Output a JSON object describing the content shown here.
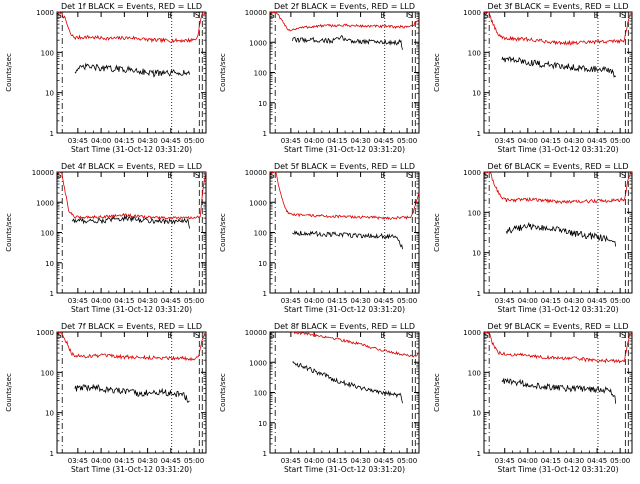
{
  "colors": {
    "events": "#000000",
    "lld": "#dd0000",
    "axis": "#000000",
    "background": "#ffffff"
  },
  "chart_data": [
    {
      "type": "line",
      "title": "Det 1f BLACK = Events, RED = LLD",
      "xlabel": "Start Time (31-Oct-12 03:31:20)",
      "ylabel": "Counts/sec",
      "y_scale": "log",
      "ylim": [
        1,
        1000
      ],
      "y_ticks": [
        "1",
        "10",
        "100",
        "1000"
      ],
      "x_ticks": [
        "03:45",
        "04:00",
        "04:15",
        "04:30",
        "04:45",
        "05:00"
      ],
      "markers": [
        {
          "label": "S"
        },
        {
          "label": "E"
        },
        {
          "label": "S"
        }
      ],
      "series": [
        {
          "label": "LLD",
          "color": "#dd0000",
          "points": [
            [
              0,
              1000
            ],
            [
              0.03,
              1000
            ],
            [
              0.06,
              600
            ],
            [
              0.09,
              280
            ],
            [
              0.12,
              230
            ],
            [
              0.2,
              240
            ],
            [
              0.35,
              220
            ],
            [
              0.5,
              230
            ],
            [
              0.65,
              200
            ],
            [
              0.8,
              195
            ],
            [
              0.9,
              200
            ],
            [
              0.94,
              220
            ],
            [
              0.97,
              800
            ],
            [
              1,
              1000
            ]
          ]
        },
        {
          "label": "Events",
          "color": "#000000",
          "points": [
            [
              0.12,
              35
            ],
            [
              0.2,
              45
            ],
            [
              0.3,
              40
            ],
            [
              0.45,
              38
            ],
            [
              0.55,
              35
            ],
            [
              0.65,
              30
            ],
            [
              0.75,
              30
            ],
            [
              0.85,
              32
            ],
            [
              0.89,
              28
            ]
          ]
        }
      ]
    },
    {
      "type": "line",
      "title": "Det 2f BLACK = Events, RED = LLD",
      "xlabel": "Start Time (31-Oct-12 03:31:20)",
      "ylabel": "Counts/sec",
      "y_scale": "log",
      "ylim": [
        1,
        10000
      ],
      "y_ticks": [
        "1",
        "10",
        "100",
        "1000",
        "10000"
      ],
      "x_ticks": [
        "03:45",
        "04:00",
        "04:15",
        "04:30",
        "04:45",
        "05:00"
      ],
      "markers": [
        {
          "label": "S"
        },
        {
          "label": "E"
        },
        {
          "label": "S"
        }
      ],
      "series": [
        {
          "label": "LLD",
          "color": "#dd0000",
          "points": [
            [
              0,
              10000
            ],
            [
              0.04,
              10000
            ],
            [
              0.07,
              6000
            ],
            [
              0.1,
              3500
            ],
            [
              0.13,
              2500
            ],
            [
              0.2,
              3000
            ],
            [
              0.35,
              3500
            ],
            [
              0.5,
              3600
            ],
            [
              0.65,
              3400
            ],
            [
              0.8,
              3300
            ],
            [
              0.9,
              3200
            ],
            [
              0.96,
              3600
            ],
            [
              1,
              6000
            ]
          ]
        },
        {
          "label": "Events",
          "color": "#000000",
          "points": [
            [
              0.15,
              1200
            ],
            [
              0.3,
              1200
            ],
            [
              0.42,
              1100
            ],
            [
              0.48,
              1400
            ],
            [
              0.55,
              1100
            ],
            [
              0.7,
              1050
            ],
            [
              0.8,
              1000
            ],
            [
              0.88,
              980
            ],
            [
              0.89,
              500
            ]
          ]
        }
      ]
    },
    {
      "type": "line",
      "title": "Det 3f BLACK = Events, RED = LLD",
      "xlabel": "Start Time (31-Oct-12 03:31:20)",
      "ylabel": "Counts/sec",
      "y_scale": "log",
      "ylim": [
        1,
        1000
      ],
      "y_ticks": [
        "1",
        "10",
        "100",
        "1000"
      ],
      "x_ticks": [
        "03:45",
        "04:00",
        "04:15",
        "04:30",
        "04:45",
        "05:00"
      ],
      "markers": [
        {
          "label": "S"
        },
        {
          "label": "E"
        },
        {
          "label": "S"
        }
      ],
      "series": [
        {
          "label": "LLD",
          "color": "#dd0000",
          "points": [
            [
              0,
              1000
            ],
            [
              0.03,
              1000
            ],
            [
              0.06,
              500
            ],
            [
              0.1,
              260
            ],
            [
              0.15,
              220
            ],
            [
              0.3,
              210
            ],
            [
              0.45,
              180
            ],
            [
              0.6,
              170
            ],
            [
              0.75,
              180
            ],
            [
              0.9,
              190
            ],
            [
              0.95,
              200
            ],
            [
              0.98,
              800
            ],
            [
              1,
              1000
            ]
          ]
        },
        {
          "label": "Events",
          "color": "#000000",
          "points": [
            [
              0.12,
              70
            ],
            [
              0.25,
              60
            ],
            [
              0.4,
              50
            ],
            [
              0.55,
              45
            ],
            [
              0.7,
              40
            ],
            [
              0.85,
              35
            ],
            [
              0.89,
              25
            ]
          ]
        }
      ]
    },
    {
      "type": "line",
      "title": "Det 4f BLACK = Events, RED = LLD",
      "xlabel": "Start Time (31-Oct-12 03:31:20)",
      "ylabel": "Counts/sec",
      "y_scale": "log",
      "ylim": [
        1,
        10000
      ],
      "y_ticks": [
        "1",
        "10",
        "100",
        "1000",
        "10000"
      ],
      "x_ticks": [
        "03:45",
        "04:00",
        "04:15",
        "04:30",
        "04:45",
        "05:00"
      ],
      "markers": [
        {
          "label": "S"
        },
        {
          "label": "E"
        },
        {
          "label": "S"
        }
      ],
      "series": [
        {
          "label": "LLD",
          "color": "#dd0000",
          "points": [
            [
              0,
              10000
            ],
            [
              0.03,
              10000
            ],
            [
              0.05,
              3000
            ],
            [
              0.08,
              500
            ],
            [
              0.12,
              320
            ],
            [
              0.3,
              330
            ],
            [
              0.45,
              380
            ],
            [
              0.6,
              320
            ],
            [
              0.75,
              300
            ],
            [
              0.9,
              300
            ],
            [
              0.96,
              320
            ],
            [
              0.98,
              3000
            ],
            [
              1,
              10000
            ]
          ]
        },
        {
          "label": "Events",
          "color": "#000000",
          "points": [
            [
              0.1,
              250
            ],
            [
              0.3,
              240
            ],
            [
              0.45,
              300
            ],
            [
              0.6,
              250
            ],
            [
              0.75,
              230
            ],
            [
              0.88,
              240
            ],
            [
              0.89,
              120
            ]
          ]
        }
      ]
    },
    {
      "type": "line",
      "title": "Det 5f BLACK = Events, RED = LLD",
      "xlabel": "Start Time (31-Oct-12 03:31:20)",
      "ylabel": "Counts/sec",
      "y_scale": "log",
      "ylim": [
        1,
        10000
      ],
      "y_ticks": [
        "1",
        "10",
        "100",
        "1000",
        "10000"
      ],
      "x_ticks": [
        "03:45",
        "04:00",
        "04:15",
        "04:30",
        "04:45",
        "05:00"
      ],
      "markers": [
        {
          "label": "S"
        },
        {
          "label": "E"
        },
        {
          "label": "S"
        }
      ],
      "series": [
        {
          "label": "LLD",
          "color": "#dd0000",
          "points": [
            [
              0,
              10000
            ],
            [
              0.04,
              10000
            ],
            [
              0.07,
              2000
            ],
            [
              0.11,
              500
            ],
            [
              0.15,
              380
            ],
            [
              0.3,
              360
            ],
            [
              0.5,
              330
            ],
            [
              0.65,
              320
            ],
            [
              0.8,
              300
            ],
            [
              0.9,
              310
            ],
            [
              0.95,
              330
            ],
            [
              1,
              2000
            ]
          ]
        },
        {
          "label": "Events",
          "color": "#000000",
          "points": [
            [
              0.15,
              100
            ],
            [
              0.3,
              90
            ],
            [
              0.45,
              85
            ],
            [
              0.6,
              80
            ],
            [
              0.75,
              75
            ],
            [
              0.85,
              70
            ],
            [
              0.89,
              30
            ]
          ]
        }
      ]
    },
    {
      "type": "line",
      "title": "Det 6f BLACK = Events, RED = LLD",
      "xlabel": "Start Time (31-Oct-12 03:31:20)",
      "ylabel": "Counts/sec",
      "y_scale": "log",
      "ylim": [
        1,
        1000
      ],
      "y_ticks": [
        "1",
        "10",
        "100",
        "1000"
      ],
      "x_ticks": [
        "03:45",
        "04:00",
        "04:15",
        "04:30",
        "04:45",
        "05:00"
      ],
      "markers": [
        {
          "label": "S"
        },
        {
          "label": "E"
        },
        {
          "label": "S"
        }
      ],
      "series": [
        {
          "label": "LLD",
          "color": "#dd0000",
          "points": [
            [
              0,
              1000
            ],
            [
              0.04,
              1000
            ],
            [
              0.07,
              500
            ],
            [
              0.11,
              250
            ],
            [
              0.15,
              200
            ],
            [
              0.3,
              210
            ],
            [
              0.45,
              190
            ],
            [
              0.6,
              180
            ],
            [
              0.75,
              190
            ],
            [
              0.9,
              200
            ],
            [
              0.95,
              210
            ],
            [
              0.98,
              800
            ],
            [
              1,
              1000
            ]
          ]
        },
        {
          "label": "Events",
          "color": "#000000",
          "points": [
            [
              0.15,
              35
            ],
            [
              0.3,
              45
            ],
            [
              0.45,
              40
            ],
            [
              0.6,
              30
            ],
            [
              0.75,
              25
            ],
            [
              0.85,
              22
            ],
            [
              0.89,
              15
            ]
          ]
        }
      ]
    },
    {
      "type": "line",
      "title": "Det 7f BLACK = Events, RED = LLD",
      "xlabel": "Start Time (31-Oct-12 03:31:20)",
      "ylabel": "Counts/sec",
      "y_scale": "log",
      "ylim": [
        1,
        1000
      ],
      "y_ticks": [
        "1",
        "10",
        "100",
        "1000"
      ],
      "x_ticks": [
        "03:45",
        "04:00",
        "04:15",
        "04:30",
        "04:45",
        "05:00"
      ],
      "markers": [
        {
          "label": "S"
        },
        {
          "label": "E"
        },
        {
          "label": "S"
        }
      ],
      "series": [
        {
          "label": "LLD",
          "color": "#dd0000",
          "points": [
            [
              0,
              1000
            ],
            [
              0.03,
              1000
            ],
            [
              0.06,
              600
            ],
            [
              0.1,
              280
            ],
            [
              0.15,
              250
            ],
            [
              0.3,
              260
            ],
            [
              0.45,
              240
            ],
            [
              0.6,
              230
            ],
            [
              0.75,
              230
            ],
            [
              0.9,
              220
            ],
            [
              0.95,
              230
            ],
            [
              0.98,
              800
            ],
            [
              1,
              1000
            ]
          ]
        },
        {
          "label": "Events",
          "color": "#000000",
          "points": [
            [
              0.12,
              40
            ],
            [
              0.25,
              42
            ],
            [
              0.4,
              35
            ],
            [
              0.55,
              30
            ],
            [
              0.7,
              32
            ],
            [
              0.85,
              28
            ],
            [
              0.89,
              18
            ]
          ]
        }
      ]
    },
    {
      "type": "line",
      "title": "Det 8f BLACK = Events, RED = LLD",
      "xlabel": "Start Time (31-Oct-12 03:31:20)",
      "ylabel": "Counts/sec",
      "y_scale": "log",
      "ylim": [
        1,
        10000
      ],
      "y_ticks": [
        "1",
        "10",
        "100",
        "1000",
        "10000"
      ],
      "x_ticks": [
        "03:45",
        "04:00",
        "04:15",
        "04:30",
        "04:45",
        "05:00"
      ],
      "markers": [
        {
          "label": "S"
        },
        {
          "label": "E"
        },
        {
          "label": "S"
        }
      ],
      "series": [
        {
          "label": "LLD",
          "color": "#dd0000",
          "points": [
            [
              0.15,
              10000
            ],
            [
              0.3,
              8000
            ],
            [
              0.45,
              6000
            ],
            [
              0.6,
              4000
            ],
            [
              0.75,
              2500
            ],
            [
              0.9,
              1800
            ],
            [
              0.97,
              1600
            ],
            [
              1,
              2000
            ]
          ]
        },
        {
          "label": "Events",
          "color": "#000000",
          "points": [
            [
              0.15,
              1000
            ],
            [
              0.3,
              500
            ],
            [
              0.45,
              250
            ],
            [
              0.6,
              150
            ],
            [
              0.75,
              100
            ],
            [
              0.88,
              80
            ],
            [
              0.89,
              40
            ]
          ]
        }
      ]
    },
    {
      "type": "line",
      "title": "Det 9f BLACK = Events, RED = LLD",
      "xlabel": "Start Time (31-Oct-12 03:31:20)",
      "ylabel": "Counts/sec",
      "y_scale": "log",
      "ylim": [
        1,
        1000
      ],
      "y_ticks": [
        "1",
        "10",
        "100",
        "1000"
      ],
      "x_ticks": [
        "03:45",
        "04:00",
        "04:15",
        "04:30",
        "04:45",
        "05:00"
      ],
      "markers": [
        {
          "label": "S"
        },
        {
          "label": "E"
        },
        {
          "label": "S"
        }
      ],
      "series": [
        {
          "label": "LLD",
          "color": "#dd0000",
          "points": [
            [
              0,
              1000
            ],
            [
              0.03,
              1000
            ],
            [
              0.06,
              500
            ],
            [
              0.1,
              300
            ],
            [
              0.15,
              280
            ],
            [
              0.3,
              260
            ],
            [
              0.45,
              230
            ],
            [
              0.6,
              220
            ],
            [
              0.75,
              200
            ],
            [
              0.9,
              190
            ],
            [
              0.95,
              200
            ],
            [
              0.98,
              800
            ],
            [
              1,
              1000
            ]
          ]
        },
        {
          "label": "Events",
          "color": "#000000",
          "points": [
            [
              0.12,
              60
            ],
            [
              0.25,
              55
            ],
            [
              0.4,
              45
            ],
            [
              0.55,
              40
            ],
            [
              0.7,
              38
            ],
            [
              0.85,
              36
            ],
            [
              0.89,
              20
            ]
          ]
        }
      ]
    }
  ]
}
